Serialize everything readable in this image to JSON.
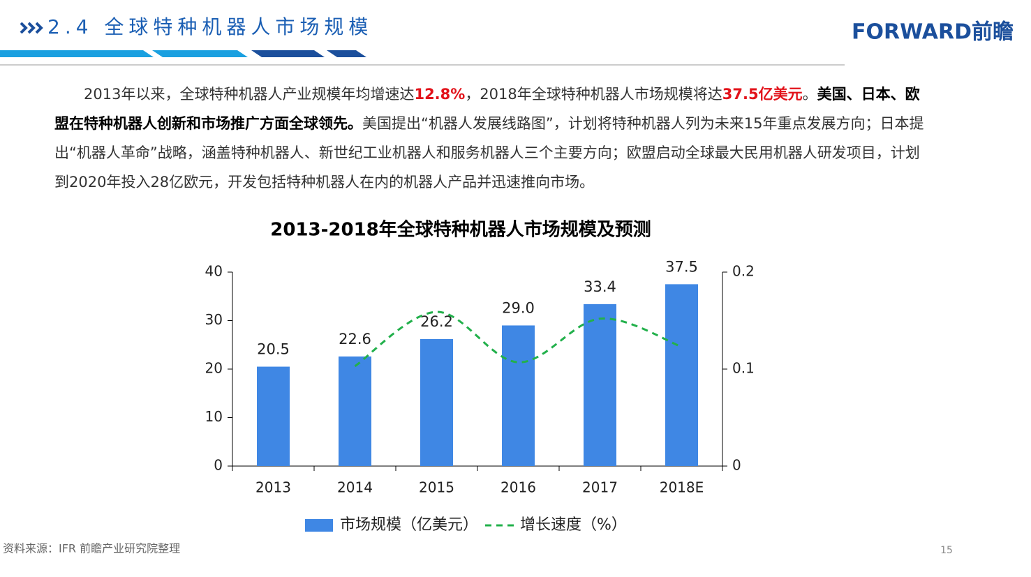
{
  "header": {
    "title": "2.4 全球特种机器人市场规模",
    "logo": "FORWARD前瞻"
  },
  "paragraph": [
    {
      "text": "2013年以来，全球特种机器人产业规模年均增速达",
      "style": "normal"
    },
    {
      "text": "12.8%",
      "style": "red-bold"
    },
    {
      "text": "，2018年全球特种机器人市场规模将达",
      "style": "normal"
    },
    {
      "text": "37.5亿美元",
      "style": "red-bold"
    },
    {
      "text": "。",
      "style": "normal"
    },
    {
      "text": "美国、日本、欧盟在特种机器人创新和市场推广方面全球领先。",
      "style": "bold"
    },
    {
      "text": "美国提出“机器人发展线路图”，计划将特种机器人列为未来15年重点发展方向；日本提出“机器人革命”战略，涵盖特种机器人、新世纪工业机器人和服务机器人三个主要方向；欧盟启动全球最大民用机器人研发项目，计划到2020年投入28亿欧元，开发包括特种机器人在内的机器人产品并迅速推向市场。",
      "style": "normal"
    }
  ],
  "chart_data": {
    "type": "bar",
    "title": "2013-2018年全球特种机器人市场规模及预测",
    "categories": [
      "2013",
      "2014",
      "2015",
      "2016",
      "2017",
      "2018E"
    ],
    "series": [
      {
        "name": "市场规模（亿美元）",
        "type": "bar",
        "color": "#3f87e4",
        "values": [
          20.5,
          22.6,
          26.2,
          29.0,
          33.4,
          37.5
        ],
        "value_labels": [
          "20.5",
          "22.6",
          "26.2",
          "29.0",
          "33.4",
          "37.5"
        ]
      },
      {
        "name": "增长速度（%）",
        "type": "line",
        "axis": "y2",
        "color": "#22b04b",
        "values": [
          null,
          0.103,
          0.159,
          0.107,
          0.152,
          0.123
        ]
      }
    ],
    "ylim": [
      0,
      40
    ],
    "yticks": [
      0,
      10,
      20,
      30,
      40
    ],
    "y2lim": [
      0,
      0.2
    ],
    "y2ticks": [
      0,
      0.1,
      0.2
    ],
    "legend": "bottom"
  },
  "source": "资料来源：IFR 前瞻产业研究院整理",
  "page_number": "15"
}
